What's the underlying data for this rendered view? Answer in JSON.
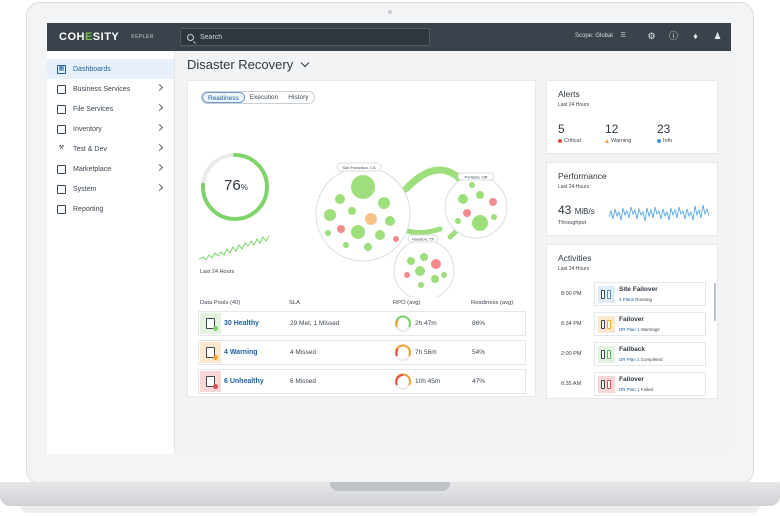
{
  "topbar": {
    "logo_pre": "COH",
    "logo_mid": "E",
    "logo_post": "SITY",
    "product": "KEPLER",
    "search_placeholder": "Search",
    "scope": "Scope: Global"
  },
  "sidebar": {
    "items": [
      {
        "label": "Dashboards",
        "icon": "grid-icon",
        "active": true
      },
      {
        "label": "Business Services",
        "icon": "briefcase-icon",
        "has_children": true
      },
      {
        "label": "File Services",
        "icon": "folder-icon",
        "has_children": true
      },
      {
        "label": "Inventory",
        "icon": "cube-icon",
        "has_children": true
      },
      {
        "label": "Test & Dev",
        "icon": "wrench-icon",
        "has_children": true
      },
      {
        "label": "Marketplace",
        "icon": "store-icon",
        "has_children": true
      },
      {
        "label": "System",
        "icon": "cube-icon",
        "has_children": true
      },
      {
        "label": "Reporting",
        "icon": "chart-icon"
      }
    ]
  },
  "page": {
    "title": "Disaster Recovery"
  },
  "main": {
    "tabs": [
      "Readiness",
      "Execution",
      "History"
    ],
    "readiness_percent": 76,
    "readiness_value": "76",
    "readiness_unit": "%",
    "last_24": "Last 24 Hours",
    "clusters": [
      "San Francisco, CA",
      "Portland, OR",
      "Houston, TX"
    ],
    "table": {
      "headers": [
        "Data Pools (40)",
        "SLA",
        "RPO (avg)",
        "Readiness (avg)"
      ],
      "rows": [
        {
          "label": "30 Healthy",
          "sla": "29 Met, 1 Missed",
          "rpo": "2h 47m",
          "readiness": "86%",
          "status_color": "#7ed36b",
          "bg": "#e3f3df"
        },
        {
          "label": "4 Warning",
          "sla": "4 Missed",
          "rpo": "7h 56m",
          "readiness": "54%",
          "status_color": "#f2a33a",
          "bg": "#fbe8cf"
        },
        {
          "label": "6 Unhealthy",
          "sla": "6 Missed",
          "rpo": "10h 45m",
          "readiness": "47%",
          "status_color": "#e24b4b",
          "bg": "#f8d7d7"
        }
      ]
    }
  },
  "alerts": {
    "title": "Alerts",
    "subtitle": "Last 24 Hours",
    "critical_count": "5",
    "critical_label": "Critical",
    "warning_count": "12",
    "warning_label": "Warning",
    "info_count": "23",
    "info_label": "Info"
  },
  "performance": {
    "title": "Performance",
    "subtitle": "Last 24 Hours",
    "throughput_value": "43",
    "throughput_unit": "MiB/s",
    "throughput_label": "Throughput"
  },
  "activities": {
    "title": "Activities",
    "subtitle": "Last 24 Hours",
    "items": [
      {
        "time": "8:00 PM",
        "title": "Site Failover",
        "link": "4 Plans",
        "status": "Running",
        "color": "#4a8ed6"
      },
      {
        "time": "6:34 PM",
        "title": "Failover",
        "link": "DR Plan 1",
        "status": "Warnings",
        "color": "#f2a33a"
      },
      {
        "time": "2:00 PM",
        "title": "Failback",
        "link": "DR Plan 1",
        "status": "Completed",
        "color": "#5cb85c"
      },
      {
        "time": "6:35 AM",
        "title": "Failover",
        "link": "DR Plan 1",
        "status": "Failed",
        "color": "#e24b4b"
      }
    ]
  },
  "colors": {
    "accent": "#1d5fa3",
    "healthy": "#7ed36b",
    "warning": "#f2a33a",
    "critical": "#e24b4b",
    "info": "#4a8ed6",
    "topbar": "#3a434b"
  }
}
